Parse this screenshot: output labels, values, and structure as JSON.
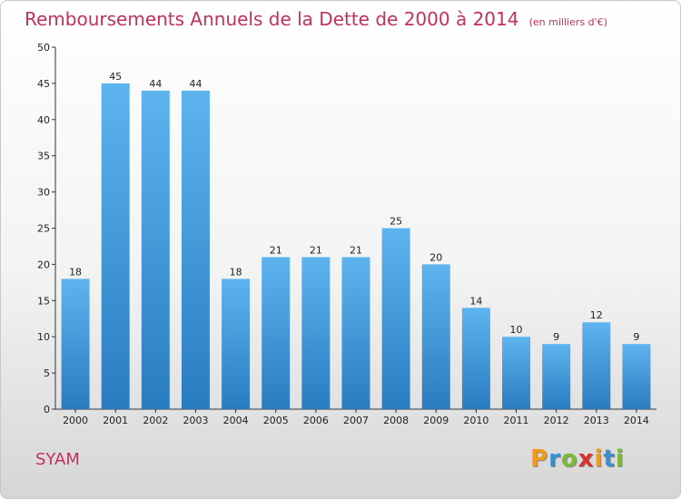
{
  "chart_data": {
    "type": "bar",
    "title": "Remboursements Annuels de la Dette de 2000 à 2014",
    "subtitle": "(en milliers d'€)",
    "categories": [
      "2000",
      "2001",
      "2002",
      "2003",
      "2004",
      "2005",
      "2006",
      "2007",
      "2008",
      "2009",
      "2010",
      "2011",
      "2012",
      "2013",
      "2014"
    ],
    "values": [
      18,
      45,
      44,
      44,
      18,
      21,
      21,
      21,
      25,
      20,
      14,
      10,
      9,
      12,
      9
    ],
    "ylim": [
      0,
      50
    ],
    "yticks": [
      0,
      5,
      10,
      15,
      20,
      25,
      30,
      35,
      40,
      45,
      50
    ],
    "grid": false,
    "bar_color": "#3f97d8"
  },
  "commune_name": "SYAM",
  "logo": {
    "letters": [
      "P",
      "r",
      "o",
      "x",
      "i",
      "t",
      "i"
    ],
    "colors": [
      "#f39a1b",
      "#3a8fd0",
      "#7cb83a",
      "#d8332b",
      "#f39a1b",
      "#3a8fd0",
      "#7cb83a"
    ]
  },
  "title_color": "#c0315f"
}
